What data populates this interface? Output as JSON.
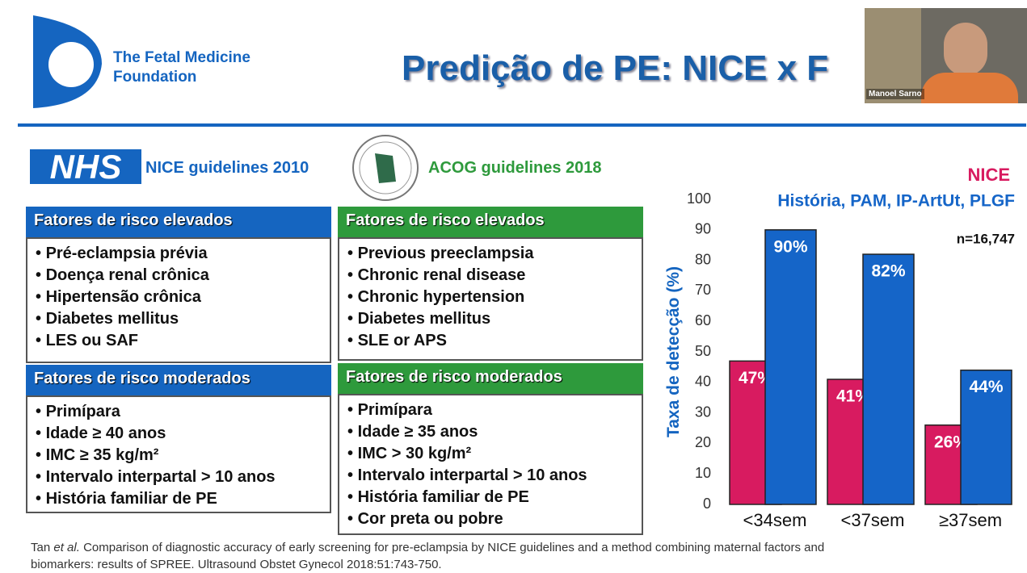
{
  "header": {
    "org": "The Fetal Medicine Foundation",
    "title": "Predição de PE: NICE x F",
    "presenter": "Manoel Sarno"
  },
  "logos": {
    "nhs": "NHS",
    "nice_caption": "NICE guidelines 2010",
    "acog_caption": "ACOG guidelines 2018"
  },
  "panels": [
    {
      "sections": [
        {
          "heading": "Fatores de risco elevados",
          "items": [
            "Pré-eclampsia prévia",
            "Doença renal crônica",
            "Hipertensão crônica",
            "Diabetes mellitus",
            "LES ou SAF"
          ]
        },
        {
          "heading": "Fatores de risco moderados",
          "items": [
            "Primípara",
            "Idade ≥ 40 anos",
            "IMC ≥ 35 kg/m²",
            "Intervalo interpartal > 10 anos",
            "História familiar de PE"
          ]
        }
      ]
    },
    {
      "sections": [
        {
          "heading": "Fatores de risco elevados",
          "items": [
            "Previous preeclampsia",
            "Chronic renal disease",
            "Chronic hypertension",
            "Diabetes mellitus",
            "SLE or APS"
          ]
        },
        {
          "heading": "Fatores de risco moderados",
          "items": [
            "Primípara",
            "Idade ≥ 35 anos",
            "IMC > 30 kg/m²",
            "Intervalo interpartal > 10 anos",
            "História familiar de PE",
            "Cor preta ou pobre"
          ]
        }
      ]
    }
  ],
  "chart_data": {
    "type": "bar",
    "y_label": "Taxa de detecção (%)",
    "annotation": "n=16,747",
    "categories": [
      "<34sem",
      "<37sem",
      "≥37sem"
    ],
    "series": [
      {
        "name": "NICE",
        "color": "#d81b60",
        "values": [
          47,
          41,
          26
        ],
        "value_labels": [
          "47%",
          "41%",
          "26%"
        ]
      },
      {
        "name": "História, PAM, IP-ArtUt, PLGF",
        "color": "#1565c8",
        "values": [
          90,
          82,
          44
        ],
        "value_labels": [
          "90%",
          "82%",
          "44%"
        ]
      }
    ],
    "ylim": [
      0,
      100
    ],
    "yticks": [
      0,
      10,
      20,
      30,
      40,
      50,
      60,
      70,
      80,
      90,
      100
    ],
    "grid": false
  },
  "citation": {
    "author": "Tan",
    "etal": "et al.",
    "line1": "Comparison of diagnostic accuracy of early screening for pre-eclampsia by NICE guidelines and a method combining maternal factors and",
    "line2": "biomarkers: results of SPREE. Ultrasound Obstet Gynecol 2018:51:743-750."
  }
}
